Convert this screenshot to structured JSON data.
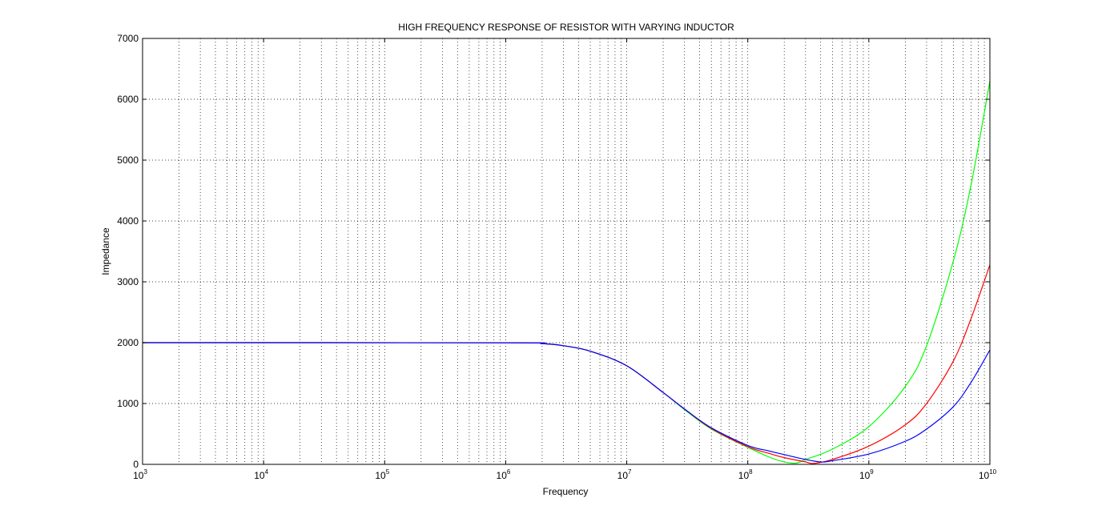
{
  "chart_data": {
    "type": "line",
    "title": "HIGH FREQUENCY RESPONSE OF RESISTOR WITH VARYING INDUCTOR",
    "xlabel": "Frequency",
    "ylabel": "Impedance",
    "xscale": "log",
    "xlim": [
      1000,
      10000000000
    ],
    "ylim": [
      0,
      7000
    ],
    "grid": true,
    "grid_style": "dotted",
    "x_ticks": [
      {
        "base": "10",
        "exp": "3",
        "value": 1000
      },
      {
        "base": "10",
        "exp": "4",
        "value": 10000
      },
      {
        "base": "10",
        "exp": "5",
        "value": 100000
      },
      {
        "base": "10",
        "exp": "6",
        "value": 1000000
      },
      {
        "base": "10",
        "exp": "7",
        "value": 10000000
      },
      {
        "base": "10",
        "exp": "8",
        "value": 100000000
      },
      {
        "base": "10",
        "exp": "9",
        "value": 1000000000
      },
      {
        "base": "10",
        "exp": "10",
        "value": 10000000000
      }
    ],
    "y_ticks": [
      0,
      1000,
      2000,
      3000,
      4000,
      5000,
      6000,
      7000
    ],
    "series": [
      {
        "color": "#00ff00",
        "x": [
          1000,
          1000000,
          2000000,
          3000000,
          5000000,
          10000000,
          20000000,
          30000000,
          50000000,
          100000000,
          150000000,
          200000000,
          250000000,
          300000000,
          500000000,
          1000000000,
          2000000000,
          3000000000,
          5000000000,
          7000000000,
          10000000000
        ],
        "y": [
          2000,
          1998,
          1985,
          1950,
          1860,
          1620,
          1180,
          900,
          580,
          280,
          120,
          40,
          20,
          80,
          250,
          620,
          1280,
          1950,
          3350,
          4600,
          6300
        ]
      },
      {
        "color": "#ff0000",
        "x": [
          1000,
          1000000,
          2000000,
          3000000,
          5000000,
          10000000,
          20000000,
          30000000,
          50000000,
          100000000,
          150000000,
          200000000,
          300000000,
          350000000,
          500000000,
          1000000000,
          2000000000,
          3000000000,
          5000000000,
          7000000000,
          10000000000
        ],
        "y": [
          2000,
          1998,
          1985,
          1950,
          1860,
          1620,
          1180,
          910,
          590,
          290,
          180,
          110,
          40,
          15,
          80,
          300,
          650,
          1000,
          1700,
          2400,
          3280
        ]
      },
      {
        "color": "#0000ff",
        "x": [
          1000,
          1000000,
          2000000,
          3000000,
          5000000,
          10000000,
          20000000,
          30000000,
          50000000,
          100000000,
          150000000,
          200000000,
          300000000,
          400000000,
          500000000,
          1000000000,
          2000000000,
          3000000000,
          5000000000,
          7000000000,
          10000000000
        ],
        "y": [
          2000,
          1998,
          1985,
          1950,
          1860,
          1620,
          1180,
          910,
          600,
          310,
          220,
          160,
          80,
          40,
          60,
          170,
          380,
          580,
          950,
          1350,
          1880
        ]
      }
    ]
  }
}
